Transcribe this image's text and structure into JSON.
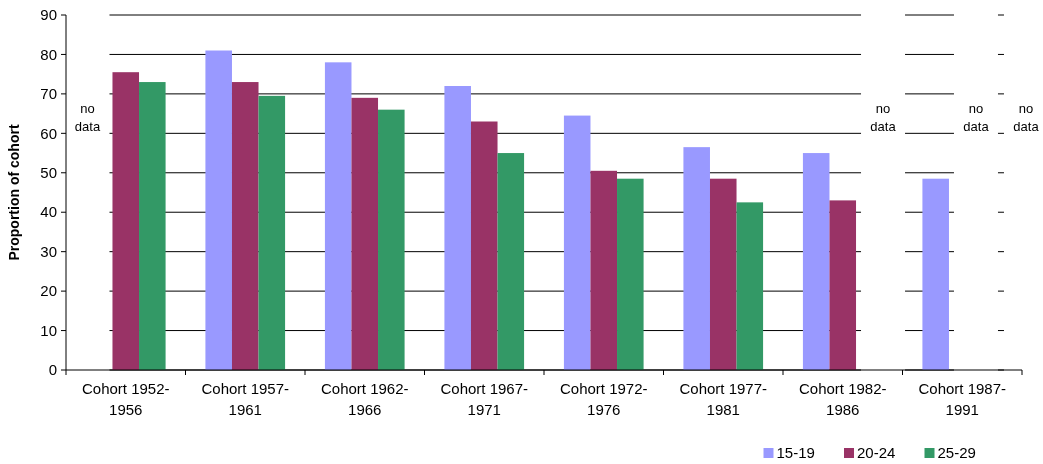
{
  "chart_data": {
    "type": "bar",
    "ylabel": "Proportion of cohort",
    "categories": [
      "Cohort 1952-1956",
      "Cohort 1957-1961",
      "Cohort 1962-1966",
      "Cohort 1967-1971",
      "Cohort 1972-1976",
      "Cohort 1977-1981",
      "Cohort 1982-1986",
      "Cohort 1987-1991"
    ],
    "series": [
      {
        "name": "15-19",
        "color": "#9999ff",
        "values": [
          null,
          81,
          78,
          72,
          64.5,
          56.5,
          55,
          48.5
        ]
      },
      {
        "name": "20-24",
        "color": "#993366",
        "values": [
          75.5,
          73,
          69,
          63,
          50.5,
          48.5,
          43,
          null
        ]
      },
      {
        "name": "25-29",
        "color": "#339966",
        "values": [
          73,
          69.5,
          66,
          55,
          48.5,
          42.5,
          null,
          null
        ]
      }
    ],
    "ylim": [
      0,
      90
    ],
    "yticks": [
      0,
      10,
      20,
      30,
      40,
      50,
      60,
      70,
      80,
      90
    ],
    "grid": "y",
    "legend": "bottom right",
    "annotations": [
      "no data",
      "no data",
      "no data",
      "no data"
    ]
  }
}
